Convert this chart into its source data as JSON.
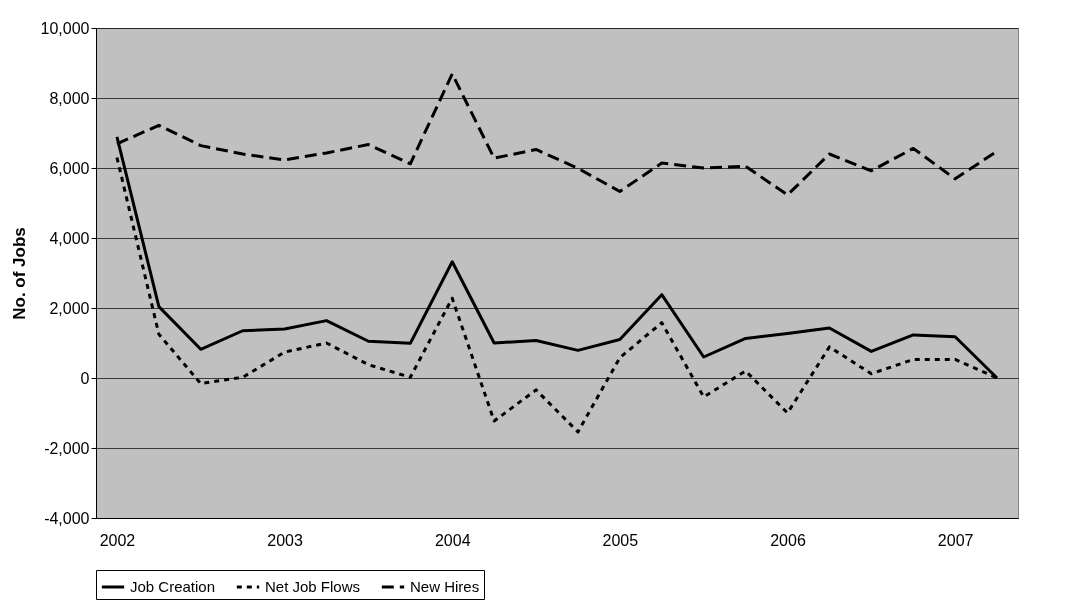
{
  "chart_data": {
    "type": "line",
    "ylabel": "No. of Jobs",
    "categories": [
      "2002",
      null,
      null,
      null,
      "2003",
      null,
      null,
      null,
      "2004",
      null,
      null,
      null,
      "2005",
      null,
      null,
      null,
      "2006",
      null,
      null,
      null,
      "2007",
      null
    ],
    "series": [
      {
        "name": "Job Creation",
        "color": "#000000",
        "line_style": "solid",
        "values": [
          6890,
          2040,
          820,
          1350,
          1400,
          1640,
          1050,
          990,
          3320,
          1000,
          1070,
          790,
          1100,
          2380,
          600,
          1130,
          1270,
          1430,
          760,
          1230,
          1180,
          0
        ]
      },
      {
        "name": "Net Job Flows",
        "color": "#000000",
        "line_style": "dotted",
        "values": [
          6300,
          1250,
          -160,
          20,
          740,
          1000,
          380,
          20,
          2280,
          -1230,
          -340,
          -1540,
          580,
          1580,
          -540,
          200,
          -1000,
          890,
          120,
          530,
          530,
          0
        ]
      },
      {
        "name": "New Hires",
        "color": "#000000",
        "line_style": "dashed",
        "values": [
          6690,
          7220,
          6640,
          6400,
          6230,
          6430,
          6670,
          6120,
          8690,
          6280,
          6530,
          5990,
          5330,
          6140,
          6000,
          6050,
          5230,
          6400,
          5920,
          6560,
          5690,
          6480
        ]
      }
    ],
    "ylim": [
      -4000,
      10000
    ],
    "yticks": [
      {
        "value": -4000,
        "label": "-4,000"
      },
      {
        "value": -2000,
        "label": "-2,000"
      },
      0,
      {
        "value": 2000,
        "label": "2,000"
      },
      {
        "value": 4000,
        "label": "4,000"
      },
      {
        "value": 6000,
        "label": "6,000"
      },
      {
        "value": 8000,
        "label": "8,000"
      },
      {
        "value": 10000,
        "label": "10,000"
      }
    ],
    "grid": "y",
    "legend": "bottom"
  }
}
